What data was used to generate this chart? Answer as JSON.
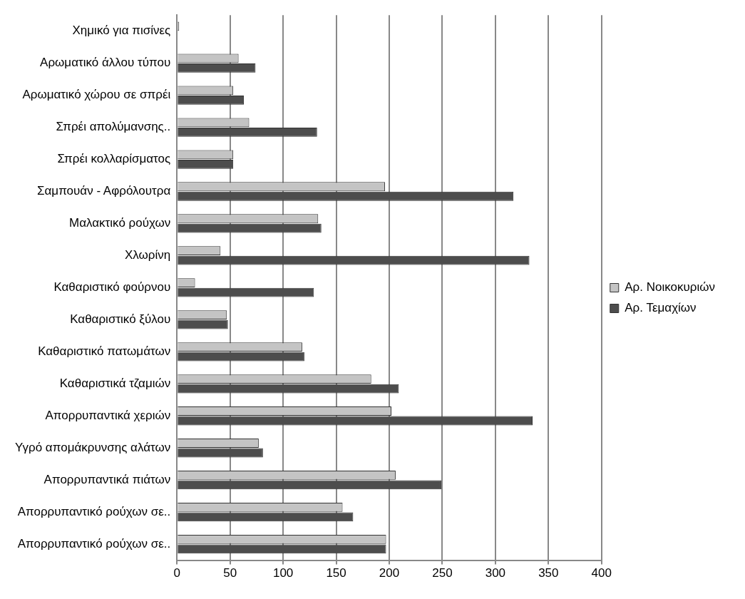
{
  "chart_data": {
    "type": "bar",
    "orientation": "horizontal",
    "categories": [
      "Χημικό για πισίνες",
      "Αρωματικό άλλου τύπου",
      "Αρωματικό χώρου σε σπρέι",
      "Σπρέι απολύμανσης..",
      "Σπρέι κολλαρίσματος",
      "Σαμπουάν - Αφρόλουτρα",
      "Μαλακτικό ρούχων",
      "Χλωρίνη",
      "Καθαριστικό φούρνου",
      "Καθαριστικό ξύλου",
      "Καθαριστικό πατωμάτων",
      "Καθαριστικά τζαμιών",
      "Απορρυπαντικά χεριών",
      "Υγρό απομάκρυνσης αλάτων",
      "Απορρυπαντικά πιάτων",
      "Απορρυπαντικό ρούχων σε..",
      "Απορρυπαντικό ρούχων σε.."
    ],
    "series": [
      {
        "name": "Αρ. Νοικοκυριών",
        "color": "#c4c4c4",
        "values": [
          2,
          58,
          53,
          68,
          53,
          196,
          133,
          41,
          17,
          47,
          118,
          183,
          202,
          77,
          206,
          156,
          197
        ]
      },
      {
        "name": "Αρ. Τεμαχίων",
        "color": "#4d4d4d",
        "values": [
          null,
          74,
          63,
          132,
          53,
          317,
          136,
          332,
          129,
          48,
          120,
          209,
          335,
          81,
          249,
          166,
          197
        ]
      }
    ],
    "xlim": [
      0,
      400
    ],
    "xticks": [
      0,
      50,
      100,
      150,
      200,
      250,
      300,
      350,
      400
    ],
    "grid": "x",
    "legend": "right"
  }
}
